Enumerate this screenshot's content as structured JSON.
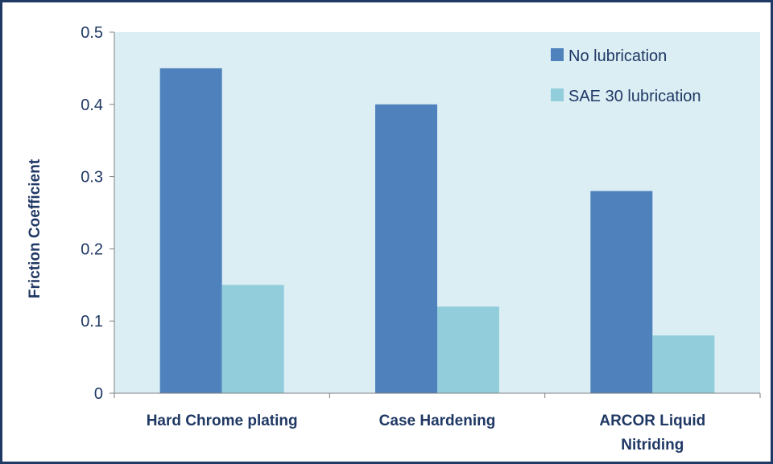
{
  "chart_data": {
    "type": "bar",
    "categories": [
      [
        "Hard Chrome plating"
      ],
      [
        "Case Hardening"
      ],
      [
        "ARCOR Liquid",
        "Nitriding"
      ]
    ],
    "series": [
      {
        "name": "No lubrication",
        "values": [
          0.45,
          0.4,
          0.28
        ],
        "color": "#4f81bd"
      },
      {
        "name": "SAE 30 lubrication",
        "values": [
          0.15,
          0.12,
          0.08
        ],
        "color": "#92cddc"
      }
    ],
    "title": "",
    "xlabel": "",
    "ylabel": "Friction Coefficient",
    "ylim": [
      0,
      0.5
    ],
    "yticks": [
      "0",
      "0.1",
      "0.2",
      "0.3",
      "0.4",
      "0.5"
    ],
    "grid": false,
    "legend_position": "top-right",
    "plot_background": "#dbeef4",
    "text_color": "#1f3864",
    "frame_color": "#1f3864"
  }
}
